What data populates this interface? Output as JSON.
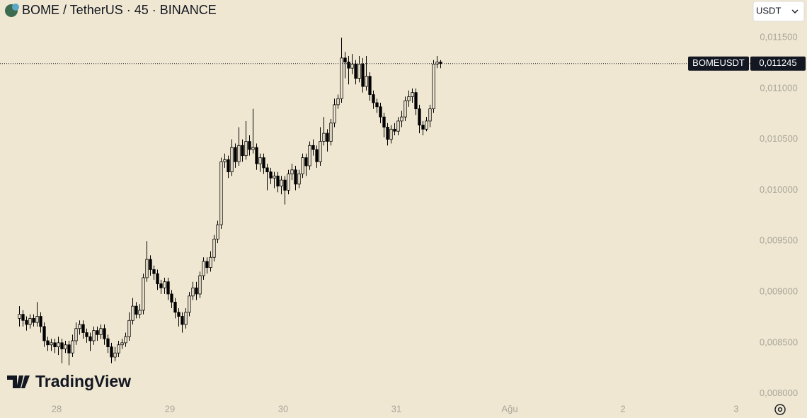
{
  "header": {
    "title": "BOME / TetherUS · 45 · BINANCE",
    "currency": "USDT"
  },
  "watermark": "TradingView",
  "chart_data": {
    "type": "candlestick",
    "ylim": [
      0.0079,
      0.01187
    ],
    "yticks": [
      {
        "value": 0.0115,
        "label": "0,011500"
      },
      {
        "value": 0.011,
        "label": "0,011000"
      },
      {
        "value": 0.0105,
        "label": "0,010500"
      },
      {
        "value": 0.01,
        "label": "0,010000"
      },
      {
        "value": 0.0095,
        "label": "0,009500"
      },
      {
        "value": 0.009,
        "label": "0,009000"
      },
      {
        "value": 0.0085,
        "label": "0,008500"
      },
      {
        "value": 0.008,
        "label": "0,008000"
      }
    ],
    "xlim": [
      -5.5,
      206.5
    ],
    "xticks": [
      {
        "value": 10.5,
        "label": "28"
      },
      {
        "value": 42.5,
        "label": "29"
      },
      {
        "value": 74.5,
        "label": "30"
      },
      {
        "value": 106.5,
        "label": "31"
      },
      {
        "value": 138.5,
        "label": "Ağu"
      },
      {
        "value": 170.5,
        "label": "2"
      },
      {
        "value": 202.5,
        "label": "3"
      }
    ],
    "up_color": "#efe7d1",
    "down_color": "#000000",
    "line_color": "#000000",
    "last_price": {
      "symbol": "BOMEUSDT",
      "value": 0.011245,
      "label": "0,011245"
    },
    "open": [
      0.00874,
      0.00878,
      0.00872,
      0.00868,
      0.00874,
      0.0087,
      0.00876,
      0.00866,
      0.00852,
      0.00848,
      0.0085,
      0.00846,
      0.0085,
      0.00844,
      0.00848,
      0.0084,
      0.00852,
      0.00864,
      0.00868,
      0.0086,
      0.00856,
      0.00852,
      0.00862,
      0.00858,
      0.00864,
      0.00854,
      0.00846,
      0.00836,
      0.0084,
      0.00848,
      0.0085,
      0.00856,
      0.00872,
      0.00886,
      0.00878,
      0.00882,
      0.00914,
      0.00932,
      0.00922,
      0.00918,
      0.00908,
      0.00904,
      0.0091,
      0.00898,
      0.0089,
      0.0088,
      0.00876,
      0.00868,
      0.0088,
      0.00896,
      0.00904,
      0.00898,
      0.00916,
      0.0093,
      0.00924,
      0.00934,
      0.00952,
      0.00966,
      0.01028,
      0.0103,
      0.01018,
      0.01042,
      0.01028,
      0.01044,
      0.01034,
      0.01048,
      0.0104,
      0.01042,
      0.01026,
      0.01032,
      0.01022,
      0.01018,
      0.01012,
      0.01014,
      0.01004,
      0.0101,
      0.01,
      0.01016,
      0.0102,
      0.01006,
      0.01016,
      0.01032,
      0.01024,
      0.01044,
      0.0104,
      0.01028,
      0.01048,
      0.01056,
      0.01048,
      0.01066,
      0.01084,
      0.0109,
      0.0113,
      0.01126,
      0.0112,
      0.01124,
      0.0111,
      0.01124,
      0.01102,
      0.01112,
      0.01094,
      0.01086,
      0.01082,
      0.01072,
      0.01062,
      0.0105,
      0.0106,
      0.01058,
      0.01068,
      0.01072,
      0.01088,
      0.01092,
      0.01096,
      0.0108,
      0.01064,
      0.0106,
      0.01068,
      0.0108,
      0.01124,
      0.01126
    ],
    "high": [
      0.00886,
      0.00882,
      0.00876,
      0.00878,
      0.00878,
      0.0089,
      0.0088,
      0.0087,
      0.00856,
      0.00854,
      0.00854,
      0.00856,
      0.00854,
      0.00852,
      0.00852,
      0.00858,
      0.0087,
      0.00872,
      0.00872,
      0.00864,
      0.0086,
      0.00866,
      0.00866,
      0.00868,
      0.00868,
      0.00858,
      0.0085,
      0.00846,
      0.00852,
      0.00854,
      0.0086,
      0.0088,
      0.00894,
      0.0089,
      0.00888,
      0.00918,
      0.0095,
      0.00936,
      0.00926,
      0.00922,
      0.00912,
      0.00914,
      0.00914,
      0.00902,
      0.00894,
      0.00884,
      0.0088,
      0.00884,
      0.009,
      0.0091,
      0.0091,
      0.0092,
      0.00934,
      0.00934,
      0.0094,
      0.00956,
      0.0097,
      0.01032,
      0.01036,
      0.01034,
      0.0105,
      0.01046,
      0.01062,
      0.0105,
      0.01068,
      0.01054,
      0.0108,
      0.01046,
      0.01036,
      0.01036,
      0.01026,
      0.01022,
      0.01018,
      0.01018,
      0.01014,
      0.01014,
      0.0102,
      0.01026,
      0.01024,
      0.0102,
      0.01036,
      0.01036,
      0.01048,
      0.0105,
      0.01044,
      0.01062,
      0.01072,
      0.0106,
      0.0107,
      0.0109,
      0.01094,
      0.0115,
      0.01136,
      0.01132,
      0.01134,
      0.01128,
      0.01132,
      0.0113,
      0.01132,
      0.01116,
      0.01098,
      0.0109,
      0.01086,
      0.01076,
      0.01066,
      0.01064,
      0.01066,
      0.01072,
      0.01078,
      0.01092,
      0.01098,
      0.011,
      0.011,
      0.01084,
      0.01068,
      0.01072,
      0.01084,
      0.01128,
      0.01132,
      0.01128
    ],
    "low": [
      0.00866,
      0.00866,
      0.00862,
      0.00864,
      0.00866,
      0.00866,
      0.0086,
      0.00846,
      0.00842,
      0.00842,
      0.0084,
      0.00838,
      0.0083,
      0.0084,
      0.00828,
      0.00836,
      0.00848,
      0.00858,
      0.00854,
      0.0085,
      0.00842,
      0.00848,
      0.00852,
      0.00854,
      0.00848,
      0.0084,
      0.0083,
      0.00832,
      0.00836,
      0.00844,
      0.00846,
      0.00852,
      0.00868,
      0.00874,
      0.00874,
      0.00878,
      0.0091,
      0.00916,
      0.00912,
      0.00902,
      0.00898,
      0.00898,
      0.00892,
      0.00884,
      0.00874,
      0.00866,
      0.0086,
      0.00864,
      0.00876,
      0.00892,
      0.00892,
      0.00894,
      0.00912,
      0.00918,
      0.0092,
      0.0093,
      0.00948,
      0.00962,
      0.01022,
      0.01012,
      0.01014,
      0.01022,
      0.01024,
      0.01028,
      0.0103,
      0.01034,
      0.01036,
      0.0102,
      0.01018,
      0.01016,
      0.01,
      0.01006,
      0.01002,
      0.00998,
      0.00996,
      0.00986,
      0.00996,
      0.0101,
      0.01,
      0.01002,
      0.01012,
      0.01014,
      0.0102,
      0.01034,
      0.01022,
      0.01024,
      0.01044,
      0.01038,
      0.01044,
      0.01062,
      0.0108,
      0.01086,
      0.0111,
      0.01104,
      0.01114,
      0.01104,
      0.01106,
      0.01096,
      0.01098,
      0.01088,
      0.0108,
      0.01076,
      0.01066,
      0.01052,
      0.01044,
      0.01046,
      0.01054,
      0.01054,
      0.01062,
      0.01068,
      0.01082,
      0.01086,
      0.01074,
      0.01056,
      0.01054,
      0.01058,
      0.01062,
      0.01076,
      0.0112,
      0.0112
    ],
    "close": [
      0.00878,
      0.00872,
      0.00868,
      0.00874,
      0.0087,
      0.00876,
      0.00866,
      0.00852,
      0.00848,
      0.0085,
      0.00846,
      0.0085,
      0.00844,
      0.00848,
      0.0084,
      0.00852,
      0.00864,
      0.00868,
      0.0086,
      0.00856,
      0.00852,
      0.00862,
      0.00858,
      0.00864,
      0.00854,
      0.00846,
      0.00836,
      0.0084,
      0.00848,
      0.0085,
      0.00856,
      0.00872,
      0.00886,
      0.00878,
      0.00882,
      0.00914,
      0.00932,
      0.00922,
      0.00918,
      0.00908,
      0.00904,
      0.0091,
      0.00898,
      0.0089,
      0.0088,
      0.00876,
      0.00868,
      0.0088,
      0.00896,
      0.00904,
      0.00898,
      0.00916,
      0.0093,
      0.00924,
      0.00934,
      0.00952,
      0.00966,
      0.01028,
      0.0103,
      0.01018,
      0.01042,
      0.01028,
      0.01044,
      0.01034,
      0.01048,
      0.0104,
      0.01042,
      0.01026,
      0.01032,
      0.01022,
      0.01018,
      0.01012,
      0.01014,
      0.01004,
      0.0101,
      0.01,
      0.01016,
      0.0102,
      0.01006,
      0.01016,
      0.01032,
      0.01024,
      0.01044,
      0.0104,
      0.01028,
      0.01048,
      0.01056,
      0.01048,
      0.01066,
      0.01084,
      0.0109,
      0.0113,
      0.01126,
      0.0112,
      0.01124,
      0.0111,
      0.01124,
      0.01102,
      0.01112,
      0.01094,
      0.01086,
      0.01082,
      0.01072,
      0.01062,
      0.0105,
      0.0106,
      0.01058,
      0.01068,
      0.01072,
      0.01088,
      0.01092,
      0.01096,
      0.0108,
      0.01064,
      0.0106,
      0.01068,
      0.0108,
      0.01124,
      0.01126,
      0.011245
    ]
  }
}
